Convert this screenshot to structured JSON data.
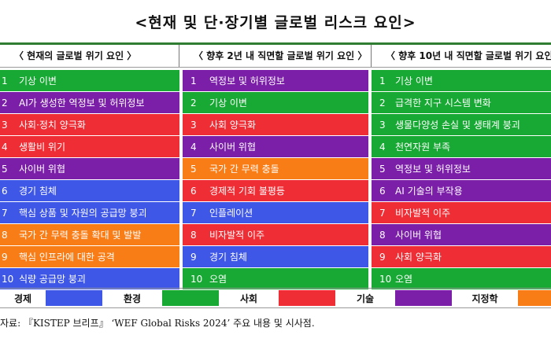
{
  "title": "<현재 및 단·장기별 글로벌 리스크 요인>",
  "colors": {
    "economy": "#3f57e6",
    "environment": "#17a933",
    "society": "#ef2d35",
    "technology": "#7b1ea8",
    "geopolitics": "#f97d17"
  },
  "columns": [
    {
      "header": "〈 현재의 글로벌 위기 요인 〉",
      "rows": [
        {
          "num": "1",
          "text": "기상 이변",
          "cat": "environment"
        },
        {
          "num": "2",
          "text": "AI가 생성한 역정보 및 허위정보",
          "cat": "technology"
        },
        {
          "num": "3",
          "text": "사회·정치 양극화",
          "cat": "society"
        },
        {
          "num": "4",
          "text": "생활비 위기",
          "cat": "society"
        },
        {
          "num": "5",
          "text": "사이버 위협",
          "cat": "technology"
        },
        {
          "num": "6",
          "text": "경기 침체",
          "cat": "economy"
        },
        {
          "num": "7",
          "text": "핵심 상품 및 자원의 공급망 붕괴",
          "cat": "economy"
        },
        {
          "num": "8",
          "text": "국가 간 무력 충돌 확대 및 발발",
          "cat": "geopolitics"
        },
        {
          "num": "9",
          "text": "핵심 인프라에 대한 공격",
          "cat": "geopolitics"
        },
        {
          "num": "10",
          "text": "식량 공급망 붕괴",
          "cat": "economy"
        }
      ]
    },
    {
      "header": "〈 향후 2년 내 직면할 글로벌 위기 요인 〉",
      "rows": [
        {
          "num": "1",
          "text": "역정보 및 허위정보",
          "cat": "technology"
        },
        {
          "num": "2",
          "text": "기상 이변",
          "cat": "environment"
        },
        {
          "num": "3",
          "text": "사회 양극화",
          "cat": "society"
        },
        {
          "num": "4",
          "text": "사이버 위협",
          "cat": "technology"
        },
        {
          "num": "5",
          "text": "국가 간 무력 충돌",
          "cat": "geopolitics"
        },
        {
          "num": "6",
          "text": "경제적 기회 불평등",
          "cat": "society"
        },
        {
          "num": "7",
          "text": "인플레이션",
          "cat": "economy"
        },
        {
          "num": "8",
          "text": "비자발적 이주",
          "cat": "society"
        },
        {
          "num": "9",
          "text": "경기 침체",
          "cat": "economy"
        },
        {
          "num": "10",
          "text": "오염",
          "cat": "environment"
        }
      ]
    },
    {
      "header": "〈 향후 10년 내 직면할 글로벌 위기 요인 〉",
      "rows": [
        {
          "num": "1",
          "text": "기상 이변",
          "cat": "environment"
        },
        {
          "num": "2",
          "text": "급격한 지구 시스템 변화",
          "cat": "environment"
        },
        {
          "num": "3",
          "text": "생물다양성 손실 및 생태계 붕괴",
          "cat": "environment"
        },
        {
          "num": "4",
          "text": "천연자원 부족",
          "cat": "environment"
        },
        {
          "num": "5",
          "text": "역정보 및 허위정보",
          "cat": "technology"
        },
        {
          "num": "6",
          "text": "AI 기술의 부작용",
          "cat": "technology"
        },
        {
          "num": "7",
          "text": "비자발적 이주",
          "cat": "society"
        },
        {
          "num": "8",
          "text": "사이버 위협",
          "cat": "technology"
        },
        {
          "num": "9",
          "text": "사회 양극화",
          "cat": "society"
        },
        {
          "num": "10",
          "text": "오염",
          "cat": "environment"
        }
      ]
    }
  ],
  "legend": [
    {
      "label": "경제",
      "cat": "economy"
    },
    {
      "label": "환경",
      "cat": "environment"
    },
    {
      "label": "사회",
      "cat": "society"
    },
    {
      "label": "기술",
      "cat": "technology"
    },
    {
      "label": "지정학",
      "cat": "geopolitics"
    }
  ],
  "source": "자료: 『KISTEP 브리프』 ‘WEF Global Risks 2024’ 주요 내용 및 시사점."
}
